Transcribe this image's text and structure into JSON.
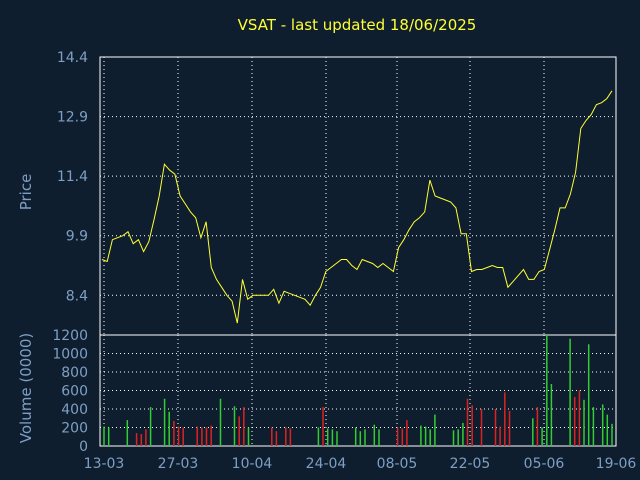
{
  "chart_data": [
    {
      "type": "line",
      "title": "VSAT - last updated 18/06/2025",
      "ylabel": "Price",
      "xlabel": "",
      "ylim": [
        7.4,
        14.4
      ],
      "y_ticks": [
        "14.4",
        "12.9",
        "11.4",
        "9.9",
        "8.4"
      ],
      "y_tick_values": [
        14.4,
        12.9,
        11.4,
        9.9,
        8.4
      ],
      "x_ticks": [
        "13-03",
        "27-03",
        "10-04",
        "24-04",
        "08-05",
        "22-05",
        "05-06",
        "19-06"
      ],
      "grid": true,
      "colors": {
        "line": "#ffff33",
        "background": "#0f1e2e",
        "grid": "#ffffff",
        "title": "#ffff33",
        "axis_text": "#7e9fc4"
      },
      "series": [
        {
          "values": [
            9.3,
            9.25,
            9.8,
            9.85,
            9.9,
            10.0,
            9.7,
            9.8,
            9.5,
            9.75,
            10.3,
            10.9,
            11.7,
            11.55,
            11.45,
            10.9,
            10.7,
            10.5,
            10.35,
            9.85,
            10.25,
            9.1,
            8.8,
            8.6,
            8.4,
            8.25,
            7.7,
            8.8,
            8.3,
            8.4,
            8.4,
            8.4,
            8.4,
            8.55,
            8.2,
            8.5,
            8.45,
            8.4,
            8.35,
            8.3,
            8.15,
            8.4,
            8.6,
            9.0,
            9.1,
            9.2,
            9.3,
            9.3,
            9.15,
            9.05,
            9.3,
            9.25,
            9.2,
            9.1,
            9.2,
            9.1,
            9.0,
            9.6,
            9.8,
            10.05,
            10.25,
            10.35,
            10.5,
            11.3,
            10.9,
            10.85,
            10.8,
            10.75,
            10.6,
            9.95,
            9.95,
            9.0,
            9.05,
            9.05,
            9.1,
            9.15,
            9.1,
            9.1,
            8.6,
            8.75,
            8.9,
            9.05,
            8.8,
            8.8,
            9.0,
            9.05,
            9.55,
            10.05,
            10.6,
            10.6,
            10.95,
            11.5,
            12.6,
            12.8,
            12.95,
            13.2,
            13.25,
            13.35,
            13.55
          ]
        }
      ]
    },
    {
      "type": "bar",
      "title": "",
      "ylabel": "Volume (0000)",
      "xlabel": "",
      "ylim": [
        0,
        1200
      ],
      "y_ticks": [
        "1200",
        "1000",
        "800",
        "600",
        "400",
        "200",
        "0"
      ],
      "y_tick_values": [
        1200,
        1000,
        800,
        600,
        400,
        200,
        0
      ],
      "x_ticks": [
        "13-03",
        "27-03",
        "10-04",
        "24-04",
        "08-05",
        "22-05",
        "05-06",
        "19-06"
      ],
      "grid": true,
      "colors": {
        "up": "#33cc33",
        "down": "#dd2222"
      },
      "series": [
        {
          "values": [
            210,
            200,
            0,
            0,
            0,
            280,
            0,
            140,
            130,
            180,
            420,
            0,
            0,
            510,
            370,
            270,
            210,
            200,
            0,
            0,
            210,
            200,
            200,
            220,
            0,
            510,
            0,
            0,
            430,
            320,
            420,
            200,
            0,
            0,
            0,
            0,
            200,
            160,
            0,
            200,
            190,
            0,
            0,
            0,
            0,
            0,
            200,
            420,
            190,
            180,
            160,
            0,
            0,
            0,
            200,
            160,
            180,
            0,
            230,
            180,
            0,
            0,
            0,
            200,
            190,
            280,
            0,
            0,
            220,
            210,
            180,
            340,
            0,
            0,
            0,
            170,
            180,
            250,
            510,
            440,
            0,
            400,
            0,
            0,
            400,
            210,
            580,
            380,
            0,
            0,
            0,
            0,
            300,
            420,
            200,
            1200,
            670,
            0,
            0,
            0,
            1160,
            530,
            600,
            500,
            1100,
            420,
            0,
            450,
            340,
            240
          ],
          "directions": [
            "u",
            "u",
            "u",
            "u",
            "u",
            "u",
            "u",
            "d",
            "d",
            "d",
            "u",
            "u",
            "u",
            "u",
            "u",
            "d",
            "d",
            "d",
            "d",
            "d",
            "d",
            "d",
            "d",
            "d",
            "d",
            "u",
            "u",
            "u",
            "u",
            "d",
            "d",
            "u",
            "u",
            "u",
            "u",
            "u",
            "d",
            "d",
            "d",
            "d",
            "d",
            "d",
            "d",
            "d",
            "d",
            "d",
            "u",
            "d",
            "u",
            "u",
            "u",
            "u",
            "u",
            "u",
            "u",
            "u",
            "u",
            "u",
            "u",
            "u",
            "u",
            "u",
            "u",
            "d",
            "d",
            "d",
            "d",
            "d",
            "u",
            "u",
            "u",
            "u",
            "u",
            "u",
            "u",
            "u",
            "u",
            "u",
            "d",
            "d",
            "d",
            "d",
            "d",
            "d",
            "d",
            "d",
            "d",
            "d",
            "d",
            "d",
            "d",
            "d",
            "u",
            "d",
            "u",
            "u",
            "u",
            "u",
            "u",
            "u",
            "u",
            "d",
            "d",
            "u",
            "u",
            "u",
            "u",
            "u",
            "u",
            "u"
          ]
        }
      ]
    }
  ]
}
